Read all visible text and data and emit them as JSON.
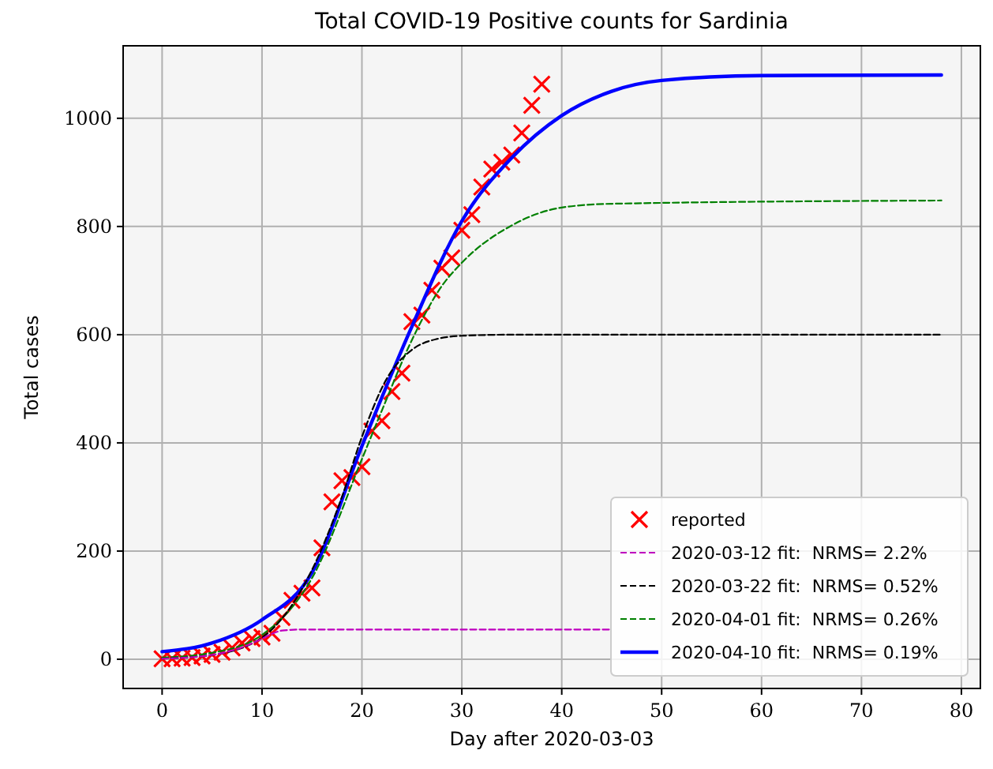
{
  "chart_data": {
    "type": "line",
    "title": "Total COVID-19 Positive counts for Sardinia",
    "xlabel": "Day after 2020-03-03",
    "ylabel": "Total cases",
    "xlim": [
      -3.9,
      81.9
    ],
    "xticks": [
      0,
      10,
      20,
      30,
      40,
      50,
      60,
      70,
      80
    ],
    "ylim": [
      -54,
      1134
    ],
    "yticks": [
      0,
      200,
      400,
      600,
      800,
      1000
    ],
    "grid": true,
    "legend": "bottom right",
    "series": [
      {
        "name": "reported",
        "type": "scatter",
        "marker": "cross",
        "color": "#ff0000",
        "x": [
          0,
          1,
          2,
          3,
          4,
          5,
          6,
          7,
          8,
          9,
          10,
          11,
          12,
          13,
          14,
          15,
          16,
          17,
          18,
          19,
          20,
          21,
          22,
          23,
          24,
          25,
          26,
          27,
          28,
          29,
          30,
          31,
          32,
          33,
          34,
          35,
          36,
          37,
          38
        ],
        "values": [
          1,
          1,
          2,
          3,
          6,
          9,
          13,
          21,
          30,
          38,
          41,
          48,
          77,
          109,
          122,
          132,
          206,
          291,
          330,
          336,
          356,
          422,
          441,
          495,
          529,
          624,
          636,
          682,
          723,
          742,
          793,
          822,
          873,
          906,
          919,
          932,
          973,
          1024,
          1063
        ]
      },
      {
        "name": "2020-03-12 fit:  NRMS= 2.2%",
        "line_style": "dashed",
        "color": "#bf00bf",
        "x": [
          0,
          5,
          8,
          10,
          11,
          12,
          14,
          45
        ],
        "values": [
          1,
          8,
          22,
          38,
          47,
          53,
          55,
          55
        ]
      },
      {
        "name": "2020-03-22 fit:  NRMS= 0.52%",
        "line_style": "dashed",
        "color": "#000000",
        "x": [
          0,
          5,
          10,
          15,
          18,
          20,
          22.5,
          25,
          27.5,
          30,
          35,
          78
        ],
        "values": [
          1,
          8,
          40,
          165,
          300,
          411,
          519,
          572,
          592,
          598,
          600,
          600
        ]
      },
      {
        "name": "2020-04-01 fit:  NRMS= 0.26%",
        "line_style": "dashed",
        "color": "#008000",
        "x": [
          0,
          5,
          10,
          15,
          20,
          22,
          25,
          28,
          30,
          35,
          40,
          45,
          78
        ],
        "values": [
          3,
          12,
          45,
          150,
          370,
          460,
          590,
          690,
          733,
          802,
          835,
          842,
          848
        ]
      },
      {
        "name": "2020-04-10 fit:  NRMS= 0.19%",
        "line_style": "solid",
        "color": "#0000ff",
        "x": [
          0,
          5,
          10,
          15,
          20,
          25,
          30,
          35,
          40,
          45,
          50,
          60,
          78
        ],
        "values": [
          14,
          30,
          73,
          160,
          394,
          615,
          810,
          927,
          1005,
          1050,
          1070,
          1079,
          1080
        ]
      }
    ]
  }
}
